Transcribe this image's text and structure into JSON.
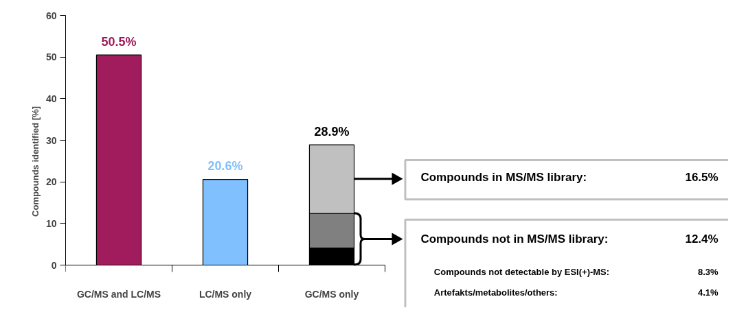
{
  "chart_data": {
    "type": "bar",
    "stacked": true,
    "ylabel": "Compounds identified [%]",
    "categories": [
      "GC/MS and LC/MS",
      "LC/MS only",
      "GC/MS only"
    ],
    "series": [
      {
        "values": [
          50.5,
          20.6,
          4.1
        ],
        "colors": [
          "#a01c5c",
          "#80c0ff",
          "#000000"
        ]
      },
      {
        "values": [
          null,
          null,
          8.3
        ],
        "color": "#808080"
      },
      {
        "values": [
          null,
          null,
          16.5
        ],
        "color": "#c0c0c0"
      }
    ],
    "totals": [
      "50.5%",
      "20.6%",
      "28.9%"
    ],
    "ylim": [
      0,
      60
    ],
    "yticks": [
      0,
      10,
      20,
      30,
      40,
      50,
      60
    ],
    "grid": false,
    "annotations": [
      "Compounds in MS/MS library:",
      "16.5%",
      "Compounds not in MS/MS library:",
      "12.4%",
      "Compounds not detectable by ESI(+)-MS:",
      "8.3%",
      "Artefakts/metabolites/others:",
      "4.1%"
    ]
  }
}
